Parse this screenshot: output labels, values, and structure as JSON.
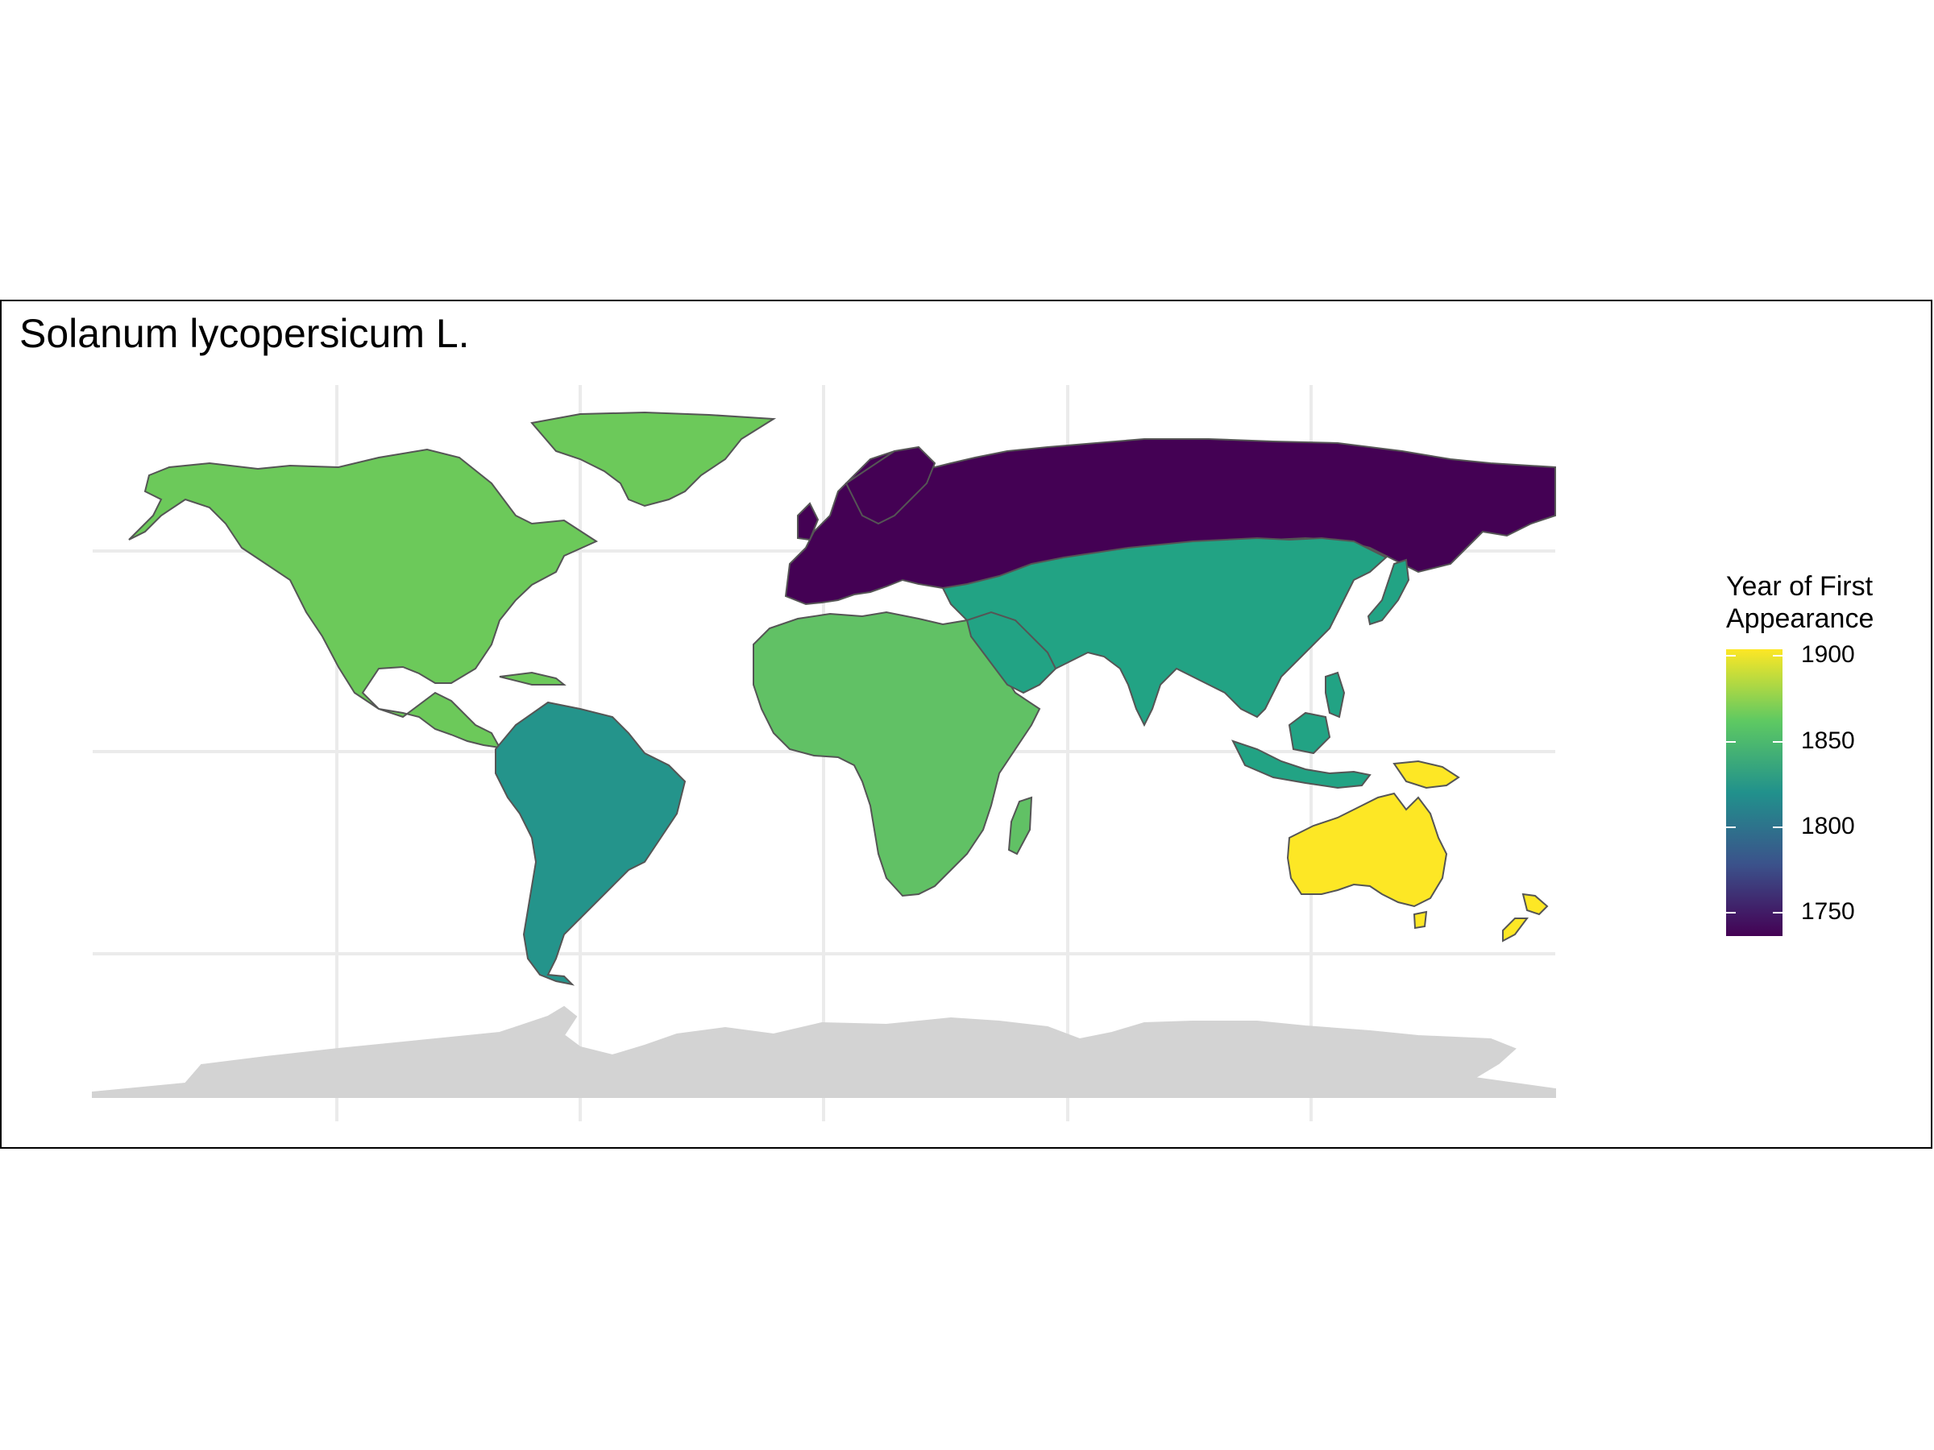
{
  "map": {
    "title": "Solanum lycopersicum L.",
    "projection": "equirectangular",
    "basemap": {
      "antarctica_color": "#d3d3d3",
      "grid": true,
      "border_color": "#555555"
    },
    "regions": [
      {
        "name": "North America",
        "year": 1860,
        "color": "#6cc95a"
      },
      {
        "name": "Greenland",
        "year": 1860,
        "color": "#6cc95a"
      },
      {
        "name": "South America",
        "year": 1820,
        "color": "#24948b"
      },
      {
        "name": "Europe",
        "year": 1750,
        "color": "#440154"
      },
      {
        "name": "Russia",
        "year": 1750,
        "color": "#440154"
      },
      {
        "name": "Africa",
        "year": 1855,
        "color": "#61c165"
      },
      {
        "name": "Asia",
        "year": 1830,
        "color": "#22a384"
      },
      {
        "name": "Australia",
        "year": 1900,
        "color": "#fde725"
      },
      {
        "name": "New Zealand",
        "year": 1900,
        "color": "#fde725"
      },
      {
        "name": "Papua New Guinea",
        "year": 1900,
        "color": "#fde725"
      }
    ],
    "legend": {
      "title": "Year of First\nAppearance",
      "ticks": [
        "1900",
        "1850",
        "1800",
        "1750"
      ],
      "tick_values": [
        1900,
        1850,
        1800,
        1750
      ],
      "range": [
        1740,
        1905
      ],
      "palette": [
        "#440154",
        "#3b528b",
        "#21918c",
        "#5ec962",
        "#fde725"
      ]
    }
  }
}
